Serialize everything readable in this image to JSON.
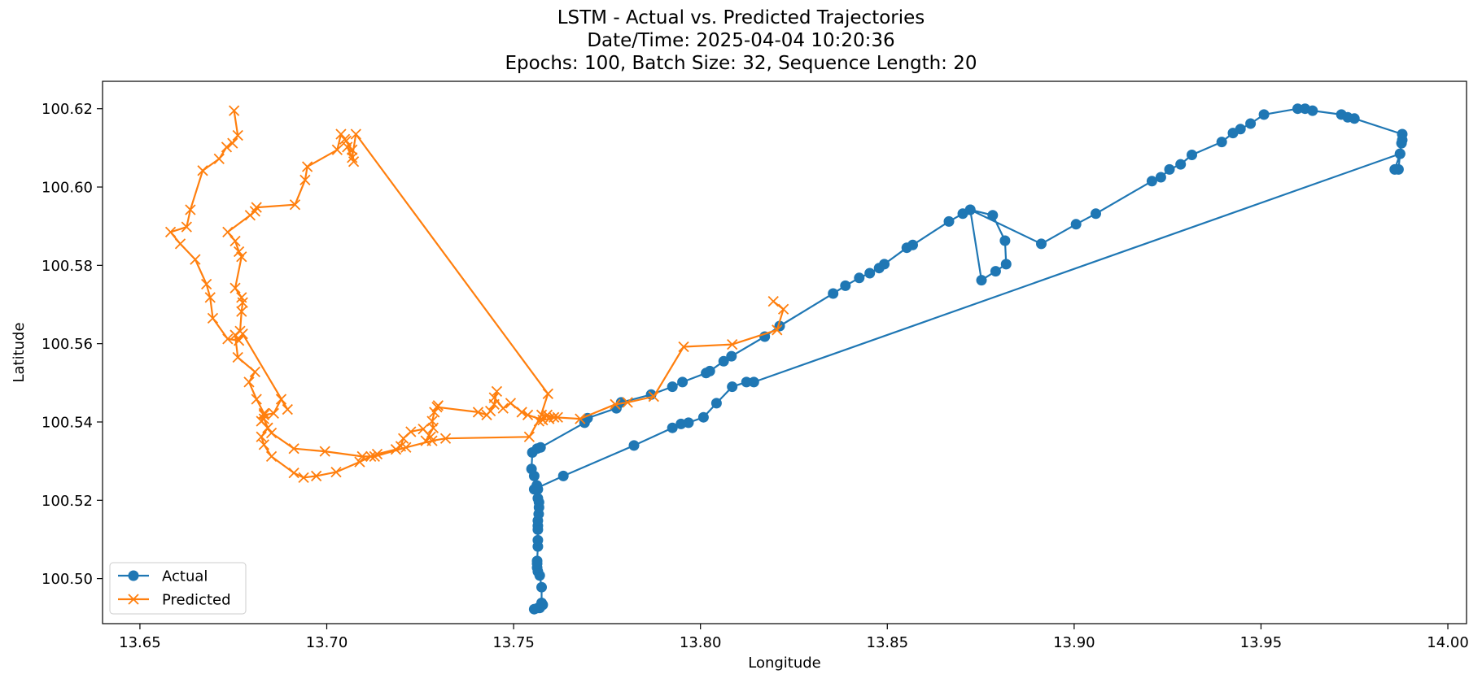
{
  "chart_data": {
    "type": "line",
    "title_lines": [
      "LSTM - Actual vs. Predicted Trajectories",
      "Date/Time: 2025-04-04 10:20:36",
      "Epochs: 100, Batch Size: 32, Sequence Length: 20"
    ],
    "xlabel": "Longitude",
    "ylabel": "Latitude",
    "xlim": [
      13.64,
      14.005
    ],
    "ylim": [
      100.4885,
      100.627
    ],
    "xticks": [
      "13.65",
      "13.70",
      "13.75",
      "13.80",
      "13.85",
      "13.90",
      "13.95",
      "14.00"
    ],
    "xtick_values": [
      13.65,
      13.7,
      13.75,
      13.8,
      13.85,
      13.9,
      13.95,
      14.0
    ],
    "yticks": [
      "100.50",
      "100.52",
      "100.54",
      "100.56",
      "100.58",
      "100.60",
      "100.62"
    ],
    "ytick_values": [
      100.5,
      100.52,
      100.54,
      100.56,
      100.58,
      100.6,
      100.62
    ],
    "grid": false,
    "legend_position": "lower-left",
    "series": [
      {
        "name": "Actual",
        "color": "#1f77b4",
        "marker": "circle",
        "points": [
          [
            13.7578,
            100.4933
          ],
          [
            13.757,
            100.4925
          ],
          [
            13.7565,
            100.4925
          ],
          [
            13.7555,
            100.4922
          ],
          [
            13.7575,
            100.4938
          ],
          [
            13.7575,
            100.4978
          ],
          [
            13.757,
            100.5008
          ],
          [
            13.7565,
            100.5018
          ],
          [
            13.7563,
            100.5028
          ],
          [
            13.7563,
            100.5038
          ],
          [
            13.7563,
            100.5045
          ],
          [
            13.7565,
            100.5082
          ],
          [
            13.7565,
            100.5098
          ],
          [
            13.7565,
            100.5125
          ],
          [
            13.7565,
            100.5135
          ],
          [
            13.7565,
            100.5148
          ],
          [
            13.7567,
            100.5165
          ],
          [
            13.7568,
            100.5182
          ],
          [
            13.7568,
            100.5195
          ],
          [
            13.7565,
            100.5205
          ],
          [
            13.7565,
            100.5228
          ],
          [
            13.7562,
            100.5238
          ],
          [
            13.7555,
            100.5262
          ],
          [
            13.7548,
            100.528
          ],
          [
            13.755,
            100.5322
          ],
          [
            13.7563,
            100.5332
          ],
          [
            13.7572,
            100.5335
          ],
          [
            13.769,
            100.5398
          ],
          [
            13.7698,
            100.541
          ],
          [
            13.7775,
            100.5435
          ],
          [
            13.7788,
            100.545
          ],
          [
            13.7868,
            100.547
          ],
          [
            13.7925,
            100.549
          ],
          [
            13.7952,
            100.5502
          ],
          [
            13.8015,
            100.5525
          ],
          [
            13.8025,
            100.553
          ],
          [
            13.8062,
            100.5555
          ],
          [
            13.8083,
            100.5568
          ],
          [
            13.8172,
            100.5618
          ],
          [
            13.8212,
            100.5645
          ],
          [
            13.8355,
            100.5728
          ],
          [
            13.8388,
            100.5748
          ],
          [
            13.8425,
            100.5768
          ],
          [
            13.8453,
            100.578
          ],
          [
            13.8478,
            100.5793
          ],
          [
            13.8492,
            100.5803
          ],
          [
            13.8552,
            100.5845
          ],
          [
            13.8568,
            100.5852
          ],
          [
            13.8665,
            100.5912
          ],
          [
            13.8702,
            100.5932
          ],
          [
            13.8722,
            100.5942
          ],
          [
            13.8782,
            100.5928
          ],
          [
            13.8815,
            100.5863
          ],
          [
            13.8818,
            100.5803
          ],
          [
            13.879,
            100.5785
          ],
          [
            13.8752,
            100.5762
          ],
          [
            13.8722,
            100.5942
          ],
          [
            13.8912,
            100.5855
          ],
          [
            13.9005,
            100.5905
          ],
          [
            13.9058,
            100.5932
          ],
          [
            13.9208,
            100.6015
          ],
          [
            13.9232,
            100.6025
          ],
          [
            13.9255,
            100.6045
          ],
          [
            13.9285,
            100.6058
          ],
          [
            13.9315,
            100.6082
          ],
          [
            13.9395,
            100.6115
          ],
          [
            13.9425,
            100.6138
          ],
          [
            13.9445,
            100.6148
          ],
          [
            13.9472,
            100.6162
          ],
          [
            13.9508,
            100.6185
          ],
          [
            13.9598,
            100.62
          ],
          [
            13.9618,
            100.62
          ],
          [
            13.9638,
            100.6195
          ],
          [
            13.9715,
            100.6185
          ],
          [
            13.9732,
            100.6178
          ],
          [
            13.975,
            100.6175
          ],
          [
            13.9878,
            100.6135
          ],
          [
            13.9878,
            100.612
          ],
          [
            13.9876,
            100.6112
          ],
          [
            13.9872,
            100.6085
          ],
          [
            13.9868,
            100.6045
          ],
          [
            13.9858,
            100.6045
          ],
          [
            13.9872,
            100.6085
          ],
          [
            13.8143,
            100.5502
          ],
          [
            13.8123,
            100.5502
          ],
          [
            13.8085,
            100.549
          ],
          [
            13.8043,
            100.5448
          ],
          [
            13.8008,
            100.5412
          ],
          [
            13.7968,
            100.5398
          ],
          [
            13.7948,
            100.5395
          ],
          [
            13.7925,
            100.5385
          ],
          [
            13.7822,
            100.534
          ],
          [
            13.7633,
            100.5262
          ],
          [
            13.7555,
            100.5228
          ]
        ]
      },
      {
        "name": "Predicted",
        "color": "#ff7f0e",
        "marker": "x",
        "points": [
          [
            13.8195,
            100.5708
          ],
          [
            13.8222,
            100.5688
          ],
          [
            13.8205,
            100.5635
          ],
          [
            13.8085,
            100.5598
          ],
          [
            13.7955,
            100.5592
          ],
          [
            13.7875,
            100.5465
          ],
          [
            13.7805,
            100.545
          ],
          [
            13.7772,
            100.5445
          ],
          [
            13.7678,
            100.5408
          ],
          [
            13.7608,
            100.5412
          ],
          [
            13.759,
            100.5418
          ],
          [
            13.7568,
            100.5402
          ],
          [
            13.7592,
            100.5472
          ],
          [
            13.7078,
            100.6135
          ],
          [
            13.7068,
            100.6075
          ],
          [
            13.7055,
            100.6102
          ],
          [
            13.7072,
            100.6065
          ],
          [
            13.7068,
            100.6095
          ],
          [
            13.7048,
            100.6122
          ],
          [
            13.7052,
            100.6118
          ],
          [
            13.7038,
            100.6135
          ],
          [
            13.7028,
            100.6095
          ],
          [
            13.6948,
            100.6052
          ],
          [
            13.6942,
            100.6018
          ],
          [
            13.6915,
            100.5955
          ],
          [
            13.6812,
            100.5948
          ],
          [
            13.6808,
            100.5938
          ],
          [
            13.6795,
            100.5928
          ],
          [
            13.6735,
            100.5885
          ],
          [
            13.6755,
            100.5862
          ],
          [
            13.6765,
            100.5835
          ],
          [
            13.6772,
            100.5822
          ],
          [
            13.6755,
            100.5742
          ],
          [
            13.6772,
            100.5718
          ],
          [
            13.6775,
            100.5705
          ],
          [
            13.6772,
            100.5682
          ],
          [
            13.6768,
            100.5632
          ],
          [
            13.6755,
            100.5622
          ],
          [
            13.6762,
            100.5565
          ],
          [
            13.6808,
            100.5528
          ],
          [
            13.6792,
            100.5502
          ],
          [
            13.6812,
            100.5458
          ],
          [
            13.6832,
            100.5422
          ],
          [
            13.6825,
            100.5402
          ],
          [
            13.6842,
            100.5385
          ],
          [
            13.6825,
            100.5362
          ],
          [
            13.6832,
            100.5342
          ],
          [
            13.6852,
            100.5312
          ],
          [
            13.6912,
            100.527
          ],
          [
            13.6938,
            100.5258
          ],
          [
            13.6972,
            100.5262
          ],
          [
            13.7025,
            100.5272
          ],
          [
            13.7088,
            100.5298
          ],
          [
            13.7118,
            100.5312
          ],
          [
            13.7135,
            100.5318
          ],
          [
            13.7185,
            100.533
          ],
          [
            13.7198,
            100.5338
          ],
          [
            13.7205,
            100.5358
          ],
          [
            13.7225,
            100.5375
          ],
          [
            13.7258,
            100.5382
          ],
          [
            13.7278,
            100.5362
          ],
          [
            13.7265,
            100.5352
          ],
          [
            13.7285,
            100.5385
          ],
          [
            13.7282,
            100.5402
          ],
          [
            13.7288,
            100.5425
          ],
          [
            13.7298,
            100.5442
          ],
          [
            13.7295,
            100.5438
          ],
          [
            13.7405,
            100.5425
          ],
          [
            13.7428,
            100.5418
          ],
          [
            13.7438,
            100.5428
          ],
          [
            13.7448,
            100.5445
          ],
          [
            13.7455,
            100.5478
          ],
          [
            13.7448,
            100.5462
          ],
          [
            13.7472,
            100.5435
          ],
          [
            13.7492,
            100.5448
          ],
          [
            13.7522,
            100.5425
          ],
          [
            13.7538,
            100.5418
          ],
          [
            13.7578,
            100.5405
          ],
          [
            13.7595,
            100.5408
          ],
          [
            13.7618,
            100.5412
          ],
          [
            13.7575,
            100.5418
          ],
          [
            13.7542,
            100.5362
          ],
          [
            13.7318,
            100.5358
          ],
          [
            13.7282,
            100.5352
          ],
          [
            13.7212,
            100.5335
          ],
          [
            13.7128,
            100.5312
          ],
          [
            13.7095,
            100.5312
          ],
          [
            13.6995,
            100.5325
          ],
          [
            13.6912,
            100.5332
          ],
          [
            13.6852,
            100.5372
          ],
          [
            13.6842,
            100.5385
          ],
          [
            13.6832,
            100.5408
          ],
          [
            13.6832,
            100.5418
          ],
          [
            13.6858,
            100.5422
          ],
          [
            13.6878,
            100.5458
          ],
          [
            13.6895,
            100.5432
          ],
          [
            13.6775,
            100.5625
          ],
          [
            13.6765,
            100.5608
          ],
          [
            13.6735,
            100.5612
          ],
          [
            13.6695,
            100.5665
          ],
          [
            13.6688,
            100.5718
          ],
          [
            13.6678,
            100.5752
          ],
          [
            13.6648,
            100.5815
          ],
          [
            13.6608,
            100.5855
          ],
          [
            13.6582,
            100.5885
          ],
          [
            13.6625,
            100.5898
          ],
          [
            13.6635,
            100.5942
          ],
          [
            13.6668,
            100.6042
          ],
          [
            13.6712,
            100.6072
          ],
          [
            13.6732,
            100.6102
          ],
          [
            13.6748,
            100.6112
          ],
          [
            13.6762,
            100.6132
          ],
          [
            13.6752,
            100.6195
          ]
        ]
      }
    ]
  }
}
